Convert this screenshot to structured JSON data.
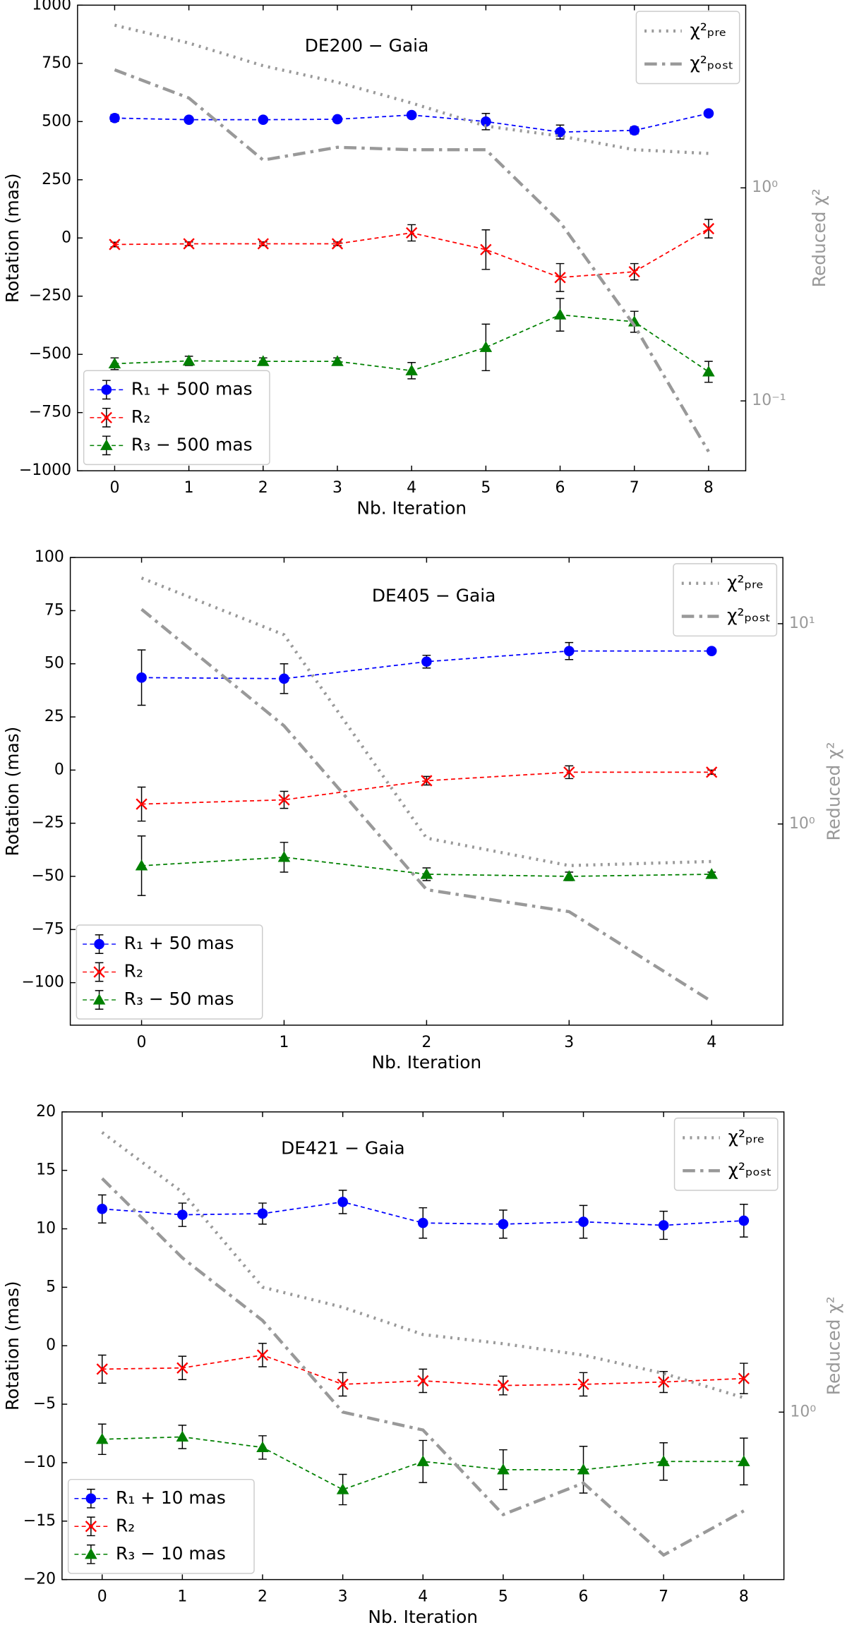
{
  "chart_data": [
    {
      "type": "errorbar-line",
      "annotation": "DE200 − Gaia",
      "xlabel": "Nb. Iteration",
      "ylabel": "Rotation (mas)",
      "y2label": "Reduced χ²",
      "x": [
        0,
        1,
        2,
        3,
        4,
        5,
        6,
        7,
        8
      ],
      "xlim": [
        -0.5,
        8.5
      ],
      "xticks": [
        0,
        1,
        2,
        3,
        4,
        5,
        6,
        7,
        8
      ],
      "ylim": [
        -1000,
        1000
      ],
      "yticks": [
        {
          "value": -1000,
          "label": "−1000"
        },
        {
          "value": -750,
          "label": "−750"
        },
        {
          "value": -500,
          "label": "−500"
        },
        {
          "value": -250,
          "label": "−250"
        },
        0,
        250,
        500,
        750,
        1000
      ],
      "y2lim": [
        0.047,
        7.2
      ],
      "y2scale": "log",
      "y2ticks": [
        {
          "value": 0.1,
          "label": "10⁻¹"
        },
        {
          "value": 1,
          "label": "10⁰"
        }
      ],
      "legend": "lower left",
      "legend2": "upper right",
      "series": [
        {
          "name": "R₁ + 500 mas",
          "color": "#0000ff",
          "marker": "circle",
          "values": [
            515,
            508,
            508,
            510,
            528,
            500,
            455,
            462,
            535
          ],
          "errors": [
            15,
            10,
            10,
            10,
            12,
            35,
            30,
            15,
            12
          ]
        },
        {
          "name": "R₂",
          "color": "#ff0000",
          "marker": "x",
          "values": [
            -28,
            -25,
            -25,
            -25,
            22,
            -50,
            -170,
            -145,
            40
          ],
          "errors": [
            10,
            8,
            8,
            8,
            35,
            85,
            60,
            35,
            40
          ]
        },
        {
          "name": "R₃ − 500 mas",
          "color": "#008000",
          "marker": "triangle",
          "values": [
            -540,
            -528,
            -530,
            -530,
            -570,
            -470,
            -330,
            -360,
            -575
          ],
          "errors": [
            25,
            20,
            15,
            15,
            35,
            100,
            70,
            45,
            45
          ]
        },
        {
          "name": "χ²ₚᵣₑ",
          "color": "#999999",
          "dash": "dotted",
          "axis": "y2",
          "values": [
            5.8,
            4.78,
            3.74,
            3.13,
            2.5,
            1.95,
            1.75,
            1.51,
            1.45
          ]
        },
        {
          "name": "χ²ₚₒₛₜ",
          "color": "#999999",
          "dash": "dashdot",
          "axis": "y2",
          "values": [
            3.58,
            2.64,
            1.35,
            1.55,
            1.51,
            1.51,
            0.69,
            0.226,
            0.0578
          ]
        }
      ]
    },
    {
      "type": "errorbar-line",
      "annotation": "DE405 − Gaia",
      "xlabel": "Nb. Iteration",
      "ylabel": "Rotation (mas)",
      "y2label": "Reduced χ²",
      "x": [
        0,
        1,
        2,
        3,
        4
      ],
      "xlim": [
        -0.5,
        4.5
      ],
      "xticks": [
        0,
        1,
        2,
        3,
        4
      ],
      "ylim": [
        -120,
        100
      ],
      "yticks": [
        {
          "value": -100,
          "label": "−100"
        },
        {
          "value": -75,
          "label": "−75"
        },
        {
          "value": -50,
          "label": "−50"
        },
        {
          "value": -25,
          "label": "−25"
        },
        0,
        25,
        50,
        75,
        100
      ],
      "y2lim": [
        0.099,
        21.4
      ],
      "y2scale": "log",
      "y2ticks": [
        {
          "value": 1,
          "label": "10⁰"
        },
        {
          "value": 10,
          "label": "10¹"
        }
      ],
      "legend": "lower left",
      "legend2": "upper right",
      "series": [
        {
          "name": "R₁ + 50 mas",
          "color": "#0000ff",
          "marker": "circle",
          "values": [
            43.5,
            43,
            51,
            56,
            56
          ],
          "errors": [
            13,
            7,
            3,
            4,
            1
          ]
        },
        {
          "name": "R₂",
          "color": "#ff0000",
          "marker": "x",
          "values": [
            -16,
            -14,
            -5,
            -1,
            -1
          ],
          "errors": [
            8,
            4,
            2,
            3,
            1
          ]
        },
        {
          "name": "R₃ − 50 mas",
          "color": "#008000",
          "marker": "triangle",
          "values": [
            -45,
            -41,
            -49,
            -50,
            -49
          ],
          "errors": [
            14,
            7,
            3,
            2,
            1
          ]
        },
        {
          "name": "χ²ₚᵣₑ",
          "color": "#999999",
          "dash": "dotted",
          "axis": "y2",
          "values": [
            16.9,
            8.8,
            0.85,
            0.62,
            0.65
          ]
        },
        {
          "name": "χ²ₚₒₛₜ",
          "color": "#999999",
          "dash": "dashdot",
          "axis": "y2",
          "values": [
            11.8,
            3.09,
            0.47,
            0.365,
            0.13
          ]
        }
      ]
    },
    {
      "type": "errorbar-line",
      "annotation": "DE421 − Gaia",
      "xlabel": "Nb. Iteration",
      "ylabel": "Rotation (mas)",
      "y2label": "Reduced χ²",
      "x": [
        0,
        1,
        2,
        3,
        4,
        5,
        6,
        7,
        8
      ],
      "xlim": [
        -0.5,
        8.5
      ],
      "xticks": [
        0,
        1,
        2,
        3,
        4,
        5,
        6,
        7,
        8
      ],
      "ylim": [
        -20,
        20
      ],
      "yticks": [
        {
          "value": -20,
          "label": "−20"
        },
        {
          "value": -15,
          "label": "−15"
        },
        {
          "value": -10,
          "label": "−10"
        },
        {
          "value": -5,
          "label": "−5"
        },
        0,
        5,
        10,
        15,
        20
      ],
      "y2lim": [
        0.507,
        3.38
      ],
      "y2scale": "log",
      "y2ticks": [
        {
          "value": 1,
          "label": "10⁰"
        }
      ],
      "legend": "lower left",
      "legend2": "upper right",
      "series": [
        {
          "name": "R₁ + 10 mas",
          "color": "#0000ff",
          "marker": "circle",
          "values": [
            11.7,
            11.2,
            11.3,
            12.3,
            10.5,
            10.4,
            10.6,
            10.3,
            10.7
          ],
          "errors": [
            1.2,
            1,
            0.9,
            1,
            1.3,
            1.2,
            1.4,
            1.2,
            1.4
          ]
        },
        {
          "name": "R₂",
          "color": "#ff0000",
          "marker": "x",
          "values": [
            -2,
            -1.9,
            -0.8,
            -3.3,
            -3,
            -3.4,
            -3.3,
            -3.1,
            -2.8
          ],
          "errors": [
            1.2,
            1,
            1,
            1,
            1,
            0.8,
            1,
            0.9,
            1.3
          ]
        },
        {
          "name": "R₃ − 10 mas",
          "color": "#008000",
          "marker": "triangle",
          "values": [
            -8,
            -7.8,
            -8.7,
            -12.3,
            -9.9,
            -10.6,
            -10.6,
            -9.9,
            -9.9
          ],
          "errors": [
            1.3,
            1,
            1,
            1.3,
            1.8,
            1.7,
            2,
            1.6,
            2
          ]
        },
        {
          "name": "χ²ₚᵣₑ",
          "color": "#999999",
          "dash": "dotted",
          "axis": "y2",
          "values": [
            3.11,
            2.44,
            1.66,
            1.53,
            1.37,
            1.32,
            1.26,
            1.17,
            1.06
          ]
        },
        {
          "name": "χ²ₚₒₛₜ",
          "color": "#999999",
          "dash": "dashdot",
          "axis": "y2",
          "values": [
            2.58,
            1.87,
            1.45,
            1.0,
            0.93,
            0.66,
            0.75,
            0.56,
            0.67
          ]
        }
      ]
    }
  ]
}
